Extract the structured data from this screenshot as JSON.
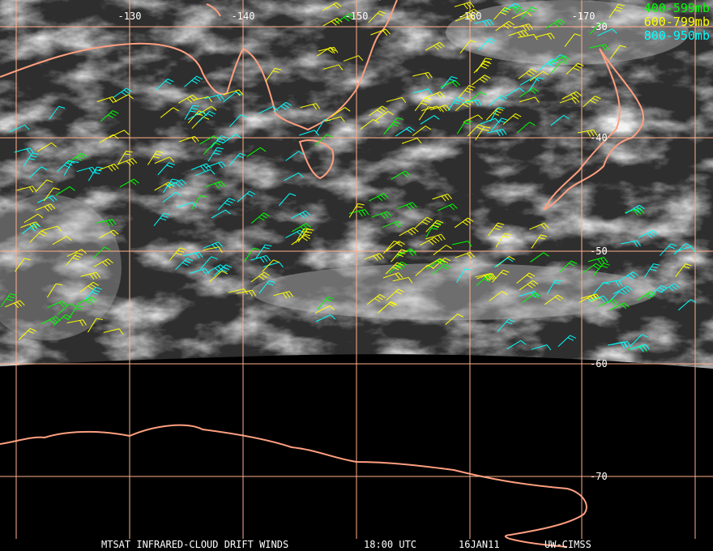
{
  "map": {
    "lon_labels": [
      -130,
      -140,
      -150,
      -160,
      -170
    ],
    "lat_labels": [
      -30,
      -40,
      -50,
      -60,
      -70
    ],
    "legend": [
      {
        "label": "400-599mb",
        "color": "#00ff00"
      },
      {
        "label": "600-799mb",
        "color": "#ffff00"
      },
      {
        "label": "800-950mb",
        "color": "#00ffff"
      }
    ],
    "footer": {
      "product": "MTSAT INFRARED-CLOUD DRIFT WINDS",
      "time": "18:00 UTC",
      "date": "16JAN11",
      "source": "UW-CIMSS"
    }
  }
}
